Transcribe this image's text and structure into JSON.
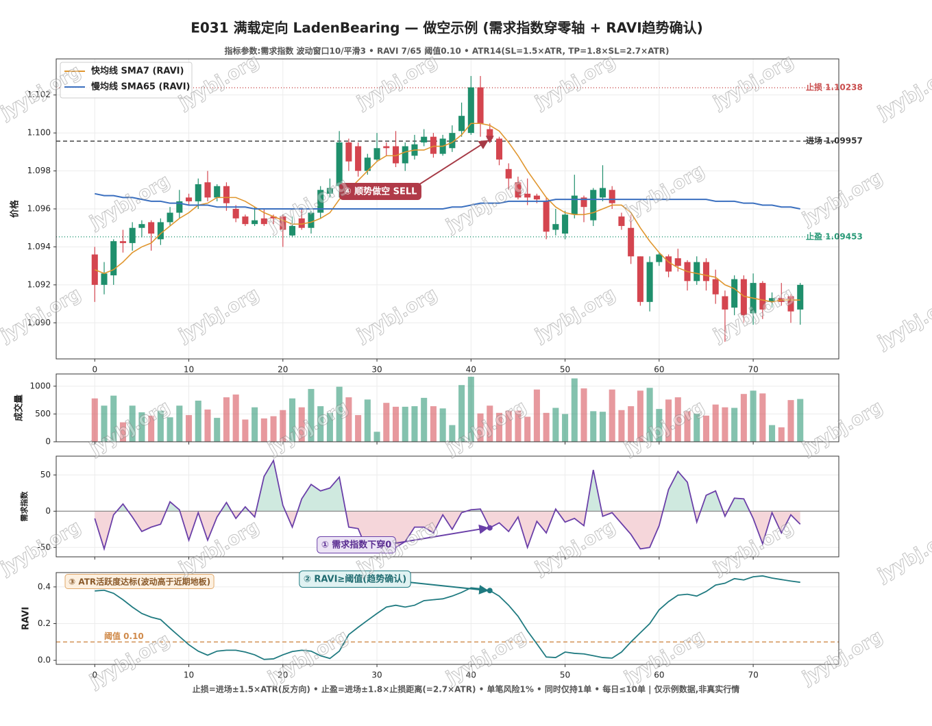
{
  "title": "E031 满载定向 LadenBearing — 做空示例 (需求指数穿零轴 + RAVI趋势确认)",
  "subtitle": "指标参数:需求指数 波动窗口10/平滑3 • RAVI 7/65 阈值0.10 • ATR14(SL=1.5×ATR, TP=1.8×SL=2.7×ATR)",
  "footnote": "止损=进场±1.5×ATR(反方向) • 止盈=进场±1.8×止损距离(=2.7×ATR) • 单笔风险1% • 同时仅持1单 • 每日≤10单   |   仅示例数据,非真实行情",
  "watermark": "jyybj.org",
  "chart_data": [
    {
      "type": "candlestick",
      "ylabel": "价格",
      "up_color": "#1f8f6c",
      "down_color": "#d4454f",
      "x": [
        0,
        1,
        2,
        3,
        4,
        5,
        6,
        7,
        8,
        9,
        10,
        11,
        12,
        13,
        14,
        15,
        16,
        17,
        18,
        19,
        20,
        21,
        22,
        23,
        24,
        25,
        26,
        27,
        28,
        29,
        30,
        31,
        32,
        33,
        34,
        35,
        36,
        37,
        38,
        39,
        40,
        41,
        42,
        43,
        44,
        45,
        46,
        47,
        48,
        49,
        50,
        51,
        52,
        53,
        54,
        55,
        56,
        57,
        58,
        59,
        60,
        61,
        62,
        63,
        64,
        65,
        66,
        67,
        68,
        69,
        70,
        71,
        72,
        73,
        74,
        75
      ],
      "open": [
        1.0936,
        1.092,
        1.0925,
        1.0943,
        1.0942,
        1.095,
        1.0953,
        1.0944,
        1.0953,
        1.0958,
        1.0966,
        1.0964,
        1.0974,
        1.0966,
        1.0972,
        1.096,
        1.0956,
        1.0952,
        1.0955,
        1.0956,
        1.0956,
        1.0946,
        1.0955,
        1.095,
        1.0958,
        1.0968,
        1.0972,
        1.0995,
        1.0993,
        1.098,
        1.0986,
        1.0993,
        1.0993,
        1.0984,
        1.0988,
        1.0995,
        1.0998,
        1.0989,
        1.0992,
        1.1001,
        1.1,
        1.1024,
        1.1002,
        1.0997,
        1.0981,
        1.0974,
        1.0968,
        1.0967,
        1.0964,
        1.0949,
        1.0947,
        1.0957,
        1.0966,
        1.0954,
        1.0966,
        1.097,
        1.0956,
        1.095,
        1.0935,
        1.0911,
        1.0932,
        1.0935,
        1.0934,
        1.0932,
        1.0922,
        1.0932,
        1.0923,
        1.0914,
        1.0908,
        1.0923,
        1.0905,
        1.0921,
        1.0911,
        1.0913,
        1.0914,
        1.0907
      ],
      "high": [
        1.094,
        1.0932,
        1.0944,
        1.0949,
        1.0953,
        1.0954,
        1.0954,
        1.0955,
        1.0961,
        1.097,
        1.0968,
        1.0976,
        1.098,
        1.0973,
        1.0974,
        1.0962,
        1.0957,
        1.0961,
        1.096,
        1.0957,
        1.0957,
        1.0956,
        1.096,
        1.0959,
        1.0972,
        1.0976,
        1.1001,
        1.0997,
        1.0995,
        1.0989,
        1.1,
        1.0995,
        1.1001,
        1.0995,
        1.0999,
        1.1002,
        1.1,
        1.0999,
        1.1004,
        1.1016,
        1.103,
        1.103,
        1.1005,
        1.0998,
        1.0984,
        1.0977,
        1.0976,
        1.0968,
        1.0966,
        1.096,
        1.0959,
        1.0978,
        1.0967,
        1.0971,
        1.0983,
        1.0972,
        1.0958,
        1.0957,
        1.0935,
        1.0935,
        1.0937,
        1.0936,
        1.0939,
        1.0933,
        1.0935,
        1.0934,
        1.0928,
        1.0917,
        1.0925,
        1.0925,
        1.0926,
        1.0922,
        1.0916,
        1.0921,
        1.0915,
        1.0921
      ],
      "low": [
        1.0911,
        1.0915,
        1.092,
        1.0937,
        1.0938,
        1.0945,
        1.0938,
        1.0941,
        1.0951,
        1.0955,
        1.0962,
        1.096,
        1.0964,
        1.0964,
        1.0959,
        1.0953,
        1.0951,
        1.0951,
        1.0951,
        1.0952,
        1.094,
        1.0945,
        1.0949,
        1.0947,
        1.0955,
        1.0966,
        1.0966,
        1.098,
        1.0977,
        1.0978,
        1.0985,
        1.0988,
        1.0982,
        1.098,
        1.0986,
        1.0993,
        1.0987,
        1.0988,
        1.099,
        1.0998,
        1.0999,
        1.0998,
        1.0995,
        1.0983,
        1.097,
        1.0965,
        1.0962,
        1.0963,
        1.0944,
        1.0946,
        1.0944,
        1.0955,
        1.0953,
        1.0951,
        1.0964,
        1.096,
        1.0949,
        1.0931,
        1.0909,
        1.0906,
        1.093,
        1.0924,
        1.0927,
        1.0917,
        1.092,
        1.0917,
        1.091,
        1.089,
        1.0904,
        1.09,
        1.0899,
        1.0902,
        1.0908,
        1.0909,
        1.09,
        1.0899
      ],
      "close": [
        1.092,
        1.0926,
        1.0943,
        1.0942,
        1.095,
        1.0952,
        1.0947,
        1.0953,
        1.0958,
        1.0964,
        1.0964,
        1.0973,
        1.0966,
        1.0972,
        1.0963,
        1.0955,
        1.0952,
        1.0954,
        1.0952,
        1.0955,
        1.0949,
        1.0951,
        1.095,
        1.0958,
        1.097,
        1.0971,
        1.0995,
        1.0985,
        1.098,
        1.0987,
        1.0992,
        1.0992,
        1.0984,
        1.0993,
        1.0994,
        1.0998,
        1.0989,
        1.0997,
        1.1,
        1.1009,
        1.1024,
        1.1005,
        1.0997,
        1.0986,
        1.0976,
        1.0966,
        1.0966,
        1.0965,
        1.0948,
        1.0952,
        1.0957,
        1.0967,
        1.0961,
        1.097,
        1.0971,
        1.0963,
        1.0951,
        1.0935,
        1.0911,
        1.0932,
        1.0936,
        1.0927,
        1.093,
        1.0922,
        1.0932,
        1.0922,
        1.0915,
        1.0907,
        1.0923,
        1.0904,
        1.0921,
        1.0907,
        1.0913,
        1.0911,
        1.0906,
        1.092
      ],
      "series": [
        {
          "name": "快均线 SMA7 (RAVI)",
          "color": "#e0962e",
          "values": [
            1.0928,
            1.0926,
            1.0928,
            1.0932,
            1.0937,
            1.094,
            1.0942,
            1.0947,
            1.0951,
            1.0955,
            1.0958,
            1.0962,
            1.0963,
            1.0966,
            1.0966,
            1.0966,
            1.0964,
            1.0961,
            1.0958,
            1.0956,
            1.0954,
            1.0952,
            1.0952,
            1.0953,
            1.0955,
            1.0958,
            1.0965,
            1.097,
            1.0975,
            1.098,
            1.0985,
            1.0988,
            1.0988,
            1.099,
            1.0991,
            1.0991,
            1.0993,
            1.0993,
            1.0995,
            1.0999,
            1.1005,
            1.1005,
            1.1004,
            1.1001,
            1.0995,
            1.0988,
            1.098,
            1.0973,
            1.0966,
            1.0961,
            1.0958,
            1.0957,
            1.0957,
            1.0958,
            1.096,
            1.0962,
            1.0962,
            1.0958,
            1.095,
            1.0943,
            1.0937,
            1.0932,
            1.0929,
            1.0927,
            1.0926,
            1.0925,
            1.0924,
            1.092,
            1.0918,
            1.0914,
            1.0913,
            1.0912,
            1.0911,
            1.0912,
            1.0912,
            1.0912
          ]
        },
        {
          "name": "慢均线 SMA65 (RAVI)",
          "color": "#3a6fbf",
          "values": [
            1.0968,
            1.0967,
            1.0967,
            1.0966,
            1.0966,
            1.0965,
            1.0964,
            1.0964,
            1.0963,
            1.0963,
            1.0962,
            1.0962,
            1.0962,
            1.0961,
            1.0961,
            1.0961,
            1.0961,
            1.096,
            1.096,
            1.096,
            1.096,
            1.096,
            1.096,
            1.096,
            1.096,
            1.096,
            1.096,
            1.096,
            1.096,
            1.096,
            1.096,
            1.096,
            1.096,
            1.096,
            1.096,
            1.096,
            1.096,
            1.096,
            1.0961,
            1.0961,
            1.0962,
            1.0963,
            1.0963,
            1.0963,
            1.0964,
            1.0964,
            1.0964,
            1.0964,
            1.0964,
            1.0965,
            1.0965,
            1.0965,
            1.0965,
            1.0965,
            1.0965,
            1.0965,
            1.0965,
            1.0965,
            1.0965,
            1.0965,
            1.0965,
            1.0965,
            1.0965,
            1.0965,
            1.0965,
            1.0965,
            1.0964,
            1.0964,
            1.0964,
            1.0963,
            1.0963,
            1.0962,
            1.0962,
            1.0961,
            1.0961,
            1.096
          ]
        }
      ],
      "hlines": [
        {
          "value": 1.10238,
          "label": "止损 1.10238",
          "color": "#c94c4c",
          "dash": "1,3"
        },
        {
          "value": 1.09957,
          "label": "进场 1.09957",
          "color": "#333333",
          "dash": "6,4"
        },
        {
          "value": 1.09453,
          "label": "止盈 1.09453",
          "color": "#2a9a78",
          "dash": "1,3"
        }
      ],
      "annotations": [
        {
          "text": "④ 顺势做空 SELL",
          "x": 42,
          "y": 1.0996
        }
      ],
      "xlim": [
        -4.1,
        79.1
      ],
      "xticks": [
        0,
        10,
        20,
        30,
        40,
        50,
        60,
        70
      ],
      "ylim": [
        1.0881,
        1.1039
      ],
      "yticks": [
        {
          "value": 1.09,
          "label": "1.090"
        },
        1.092,
        1.094,
        1.096,
        1.098,
        {
          "value": 1.1,
          "label": "1.100"
        },
        1.102
      ],
      "grid": true,
      "legend": "upper left"
    },
    {
      "type": "bar",
      "ylabel": "成交量",
      "alpha": 0.55,
      "values": [
        780,
        650,
        830,
        350,
        650,
        530,
        470,
        560,
        440,
        650,
        480,
        740,
        580,
        430,
        800,
        850,
        400,
        620,
        420,
        460,
        570,
        780,
        620,
        950,
        640,
        520,
        990,
        800,
        480,
        760,
        180,
        700,
        630,
        630,
        640,
        790,
        640,
        600,
        300,
        1020,
        1170,
        510,
        650,
        520,
        560,
        560,
        450,
        940,
        520,
        610,
        500,
        1140,
        960,
        550,
        540,
        940,
        570,
        640,
        920,
        970,
        590,
        760,
        800,
        550,
        510,
        470,
        670,
        620,
        610,
        860,
        920,
        870,
        300,
        260,
        750,
        770
      ],
      "ylim": [
        0,
        1220
      ],
      "yticks": [
        0,
        500,
        1000
      ],
      "grid": true
    },
    {
      "type": "line",
      "ylabel": "需求指数",
      "color": "#6a3fa8",
      "pos_fill": "#cfe9df",
      "neg_fill": "#f5d6da",
      "values": [
        -10,
        -52,
        -5,
        10,
        -8,
        -28,
        -22,
        -18,
        13,
        2,
        -40,
        -2,
        -40,
        -8,
        12,
        -10,
        6,
        -8,
        48,
        70,
        8,
        -22,
        17,
        37,
        28,
        32,
        47,
        -22,
        -24,
        -55,
        -48,
        -58,
        -50,
        -42,
        -22,
        -22,
        -30,
        -5,
        -25,
        -2,
        2,
        3,
        -23,
        -16,
        -28,
        -8,
        -50,
        -14,
        -30,
        3,
        -15,
        -10,
        -20,
        57,
        -7,
        -2,
        -17,
        -32,
        -52,
        -50,
        -20,
        30,
        55,
        40,
        -15,
        22,
        28,
        -7,
        18,
        17,
        -10,
        -45,
        -2,
        -30,
        -5,
        -18
      ],
      "annotations": [
        {
          "text": "① 需求指数下穿0",
          "x": 42,
          "y": -23
        }
      ],
      "ylim": [
        -63,
        76
      ],
      "yticks": [
        -50,
        0,
        50
      ],
      "grid": true
    },
    {
      "type": "line",
      "ylabel": "RAVI",
      "color": "#1f7a80",
      "values": [
        0.378,
        0.382,
        0.365,
        0.33,
        0.29,
        0.255,
        0.235,
        0.222,
        0.175,
        0.13,
        0.085,
        0.05,
        0.028,
        0.05,
        0.055,
        0.055,
        0.045,
        0.03,
        0.005,
        0.008,
        0.03,
        0.048,
        0.055,
        0.05,
        0.025,
        0.01,
        0.05,
        0.14,
        0.18,
        0.218,
        0.255,
        0.29,
        0.3,
        0.29,
        0.3,
        0.325,
        0.33,
        0.335,
        0.35,
        0.37,
        0.395,
        0.39,
        0.38,
        0.35,
        0.3,
        0.24,
        0.16,
        0.09,
        0.018,
        0.015,
        0.045,
        0.038,
        0.035,
        0.025,
        0.015,
        0.012,
        0.045,
        0.1,
        0.15,
        0.2,
        0.275,
        0.32,
        0.355,
        0.36,
        0.35,
        0.375,
        0.41,
        0.42,
        0.445,
        0.438,
        0.455,
        0.46,
        0.448,
        0.44,
        0.432,
        0.425
      ],
      "threshold": {
        "value": 0.1,
        "label": "阈值 0.10",
        "color": "#d08a4a"
      },
      "note": "③ ATR活跃度达标(波动高于近期地板)",
      "annotations": [
        {
          "text": "② RAVI≥阈值(趋势确认)",
          "x": 42,
          "y": 0.38
        }
      ],
      "ylim": [
        -0.022,
        0.478
      ],
      "yticks": [
        {
          "value": 0,
          "label": "0.0"
        },
        0.2,
        0.4
      ],
      "grid": true
    }
  ]
}
